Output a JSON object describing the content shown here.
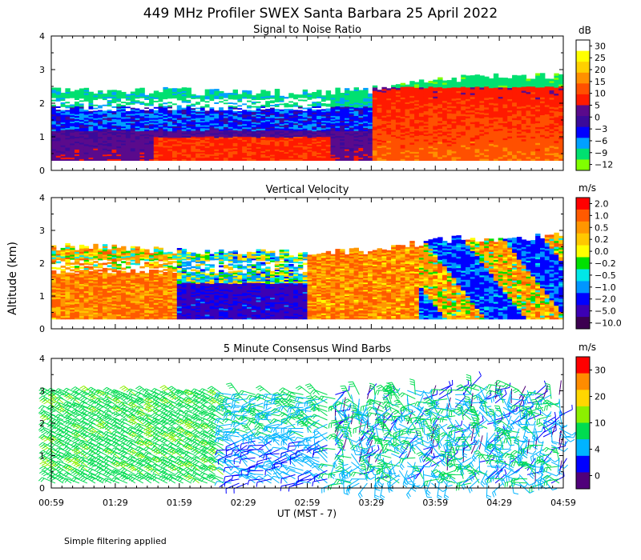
{
  "title": "449 MHz Profiler SWEX Santa Barbara 25 April 2022",
  "ylabel": "Altitude (km)",
  "xlabel": "UT  (MST - 7)",
  "footnote": "Simple filtering applied",
  "x_ticks": [
    "00:59",
    "01:29",
    "01:59",
    "02:29",
    "02:59",
    "03:29",
    "03:59",
    "04:29",
    "04:59"
  ],
  "y_ticks": [
    "0",
    "1",
    "2",
    "3",
    "4"
  ],
  "panels": [
    {
      "title": "Signal to Noise Ratio",
      "unit": "dB",
      "colorbar": [
        "30",
        "25",
        "20",
        "15",
        "10",
        "5",
        "0",
        "−3",
        "−6",
        "−9",
        "−12"
      ]
    },
    {
      "title": "Vertical Velocity",
      "unit": "m/s",
      "colorbar": [
        "2.0",
        "1.0",
        "0.5",
        "0.2",
        "0.0",
        "−0.2",
        "−0.5",
        "−1.0",
        "−2.0",
        "−5.0",
        "−10.0"
      ]
    },
    {
      "title": "5 Minute Consensus Wind Barbs",
      "unit": "m/s",
      "colorbar": [
        "30",
        "20",
        "10",
        "4",
        "0"
      ]
    }
  ],
  "chart_data": [
    {
      "type": "heatmap",
      "title": "Signal to Noise Ratio",
      "units": "dB",
      "x_range": [
        "00:59",
        "04:59"
      ],
      "ylim": [
        0,
        4
      ],
      "color_levels": [
        30,
        25,
        20,
        15,
        10,
        5,
        0,
        -3,
        -6,
        -9,
        -12
      ],
      "colors": [
        "#ffffff",
        "#ffff00",
        "#ffd000",
        "#ff9000",
        "#ff5000",
        "#ff1a00",
        "#5a0a8c",
        "#3a0a9a",
        "#0000ff",
        "#00a0ff",
        "#00e070",
        "#80ff00"
      ],
      "data_top_km": {
        "00:59": 2.4,
        "02:59": 2.3,
        "03:29": 2.4,
        "03:59": 2.7,
        "04:59": 2.85
      },
      "data_bottom_km": 0.3
    },
    {
      "type": "heatmap",
      "title": "Vertical Velocity",
      "units": "m/s",
      "x_range": [
        "00:59",
        "04:59"
      ],
      "ylim": [
        0,
        4
      ],
      "color_levels": [
        2.0,
        1.0,
        0.5,
        0.2,
        0.0,
        -0.2,
        -0.5,
        -1.0,
        -2.0,
        -5.0,
        -10.0
      ],
      "colors": [
        "#ff0000",
        "#ff5a00",
        "#ff9600",
        "#ffc800",
        "#ffff00",
        "#00e000",
        "#00e8e8",
        "#0096ff",
        "#0000ff",
        "#3c00b4",
        "#3c0050"
      ],
      "data_top_km": {
        "00:59": 2.5,
        "02:59": 2.3,
        "03:29": 2.4,
        "03:59": 2.7,
        "04:59": 2.85
      },
      "data_bottom_km": 0.3
    },
    {
      "type": "scatter",
      "title": "5 Minute Consensus Wind Barbs",
      "units": "m/s",
      "x_range": [
        "00:59",
        "04:59"
      ],
      "ylim": [
        0,
        4
      ],
      "color_levels": [
        30,
        20,
        10,
        4,
        0
      ],
      "colors": [
        "#ff0000",
        "#ff8c00",
        "#ffd700",
        "#8cf000",
        "#00dc50",
        "#00b4ff",
        "#0000ff",
        "#50007a"
      ],
      "data_top_km": {
        "00:59": 2.9,
        "03:29": 3.0,
        "04:29": 3.2,
        "04:59": 2.9
      },
      "data_bottom_km": 0.1
    }
  ]
}
